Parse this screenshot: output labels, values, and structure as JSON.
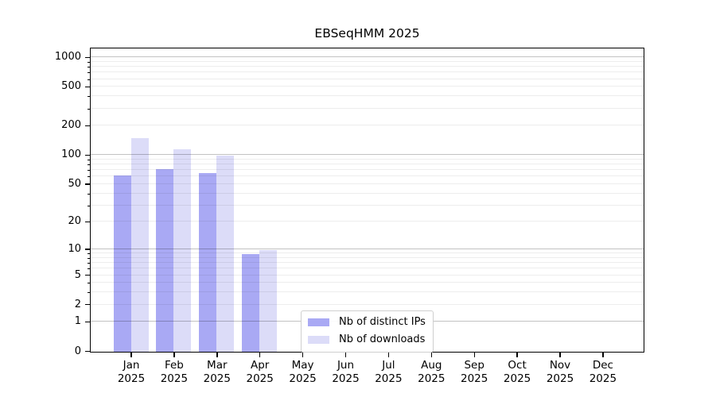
{
  "title": "EBSeqHMM 2025",
  "legend": {
    "items": [
      {
        "key": "distinct-ips",
        "label": "Nb of distinct IPs",
        "swatch": "#a9a9f4"
      },
      {
        "key": "downloads",
        "label": "Nb of downloads",
        "swatch": "#dcdcf8"
      }
    ]
  },
  "axis": {
    "y_tick_labels": [
      "0",
      "1",
      "2",
      "5",
      "10",
      "20",
      "50",
      "100",
      "200",
      "500",
      "1000"
    ],
    "months": [
      "Jan",
      "Feb",
      "Mar",
      "Apr",
      "May",
      "Jun",
      "Jul",
      "Aug",
      "Sep",
      "Oct",
      "Nov",
      "Dec"
    ],
    "year": "2025"
  },
  "chart_data": {
    "type": "bar",
    "title": "EBSeqHMM 2025",
    "scale": "symlog: position = log10(1 + y)",
    "categories": [
      "Jan 2025",
      "Feb 2025",
      "Mar 2025",
      "Apr 2025",
      "May 2025",
      "Jun 2025",
      "Jul 2025",
      "Aug 2025",
      "Sep 2025",
      "Oct 2025",
      "Nov 2025",
      "Dec 2025"
    ],
    "series": [
      {
        "name": "Nb of distinct IPs",
        "color": "#a9a9f4",
        "values": [
          62,
          72,
          66,
          9,
          0,
          0,
          0,
          0,
          0,
          0,
          0,
          0
        ]
      },
      {
        "name": "Nb of downloads",
        "color": "#dcdcf8",
        "values": [
          152,
          115,
          100,
          10,
          0,
          0,
          0,
          0,
          0,
          0,
          0,
          0
        ]
      }
    ],
    "y_ticks": [
      0,
      1,
      2,
      5,
      10,
      20,
      50,
      100,
      200,
      500,
      1000
    ],
    "ylim": [
      0,
      1224
    ],
    "grid": {
      "orientation": "horizontal",
      "major_on": [
        1,
        10,
        100,
        1000
      ],
      "major_color": "#c2c2c2",
      "minor_color": "#ededed",
      "drawn_above_bars": true
    },
    "legend_position": "lower center",
    "xlabel": "",
    "ylabel": ""
  }
}
